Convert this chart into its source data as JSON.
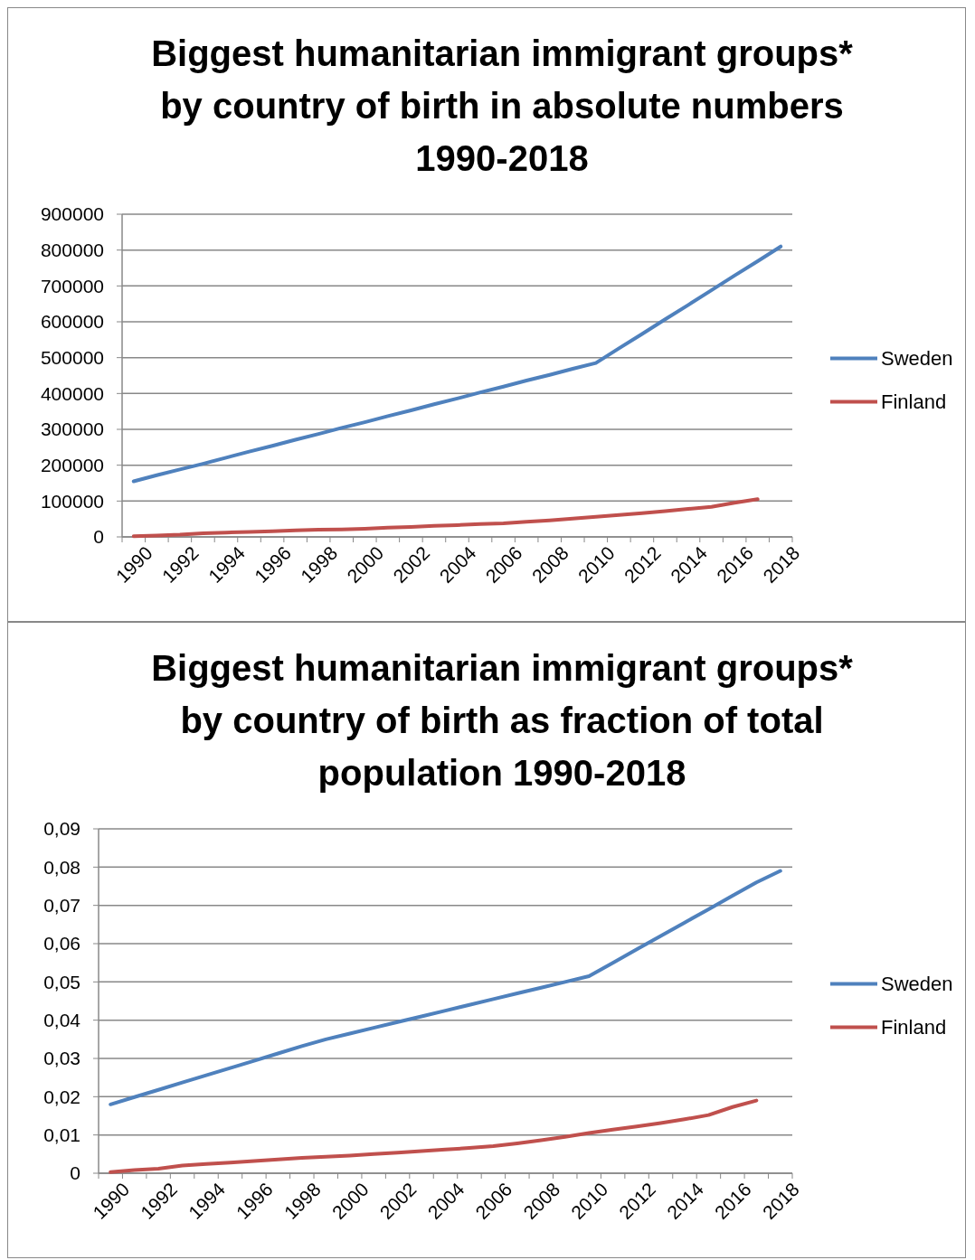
{
  "chart_data": [
    {
      "type": "line",
      "title": "Biggest humanitarian immigrant groups*\nby country of birth in absolute numbers\n1990-2018",
      "categories": [
        "1990",
        null,
        "1992",
        null,
        "1994",
        null,
        "1996",
        null,
        "1998",
        null,
        "2000",
        null,
        "2002",
        null,
        "2004",
        null,
        "2006",
        null,
        "2008",
        null,
        "2010",
        null,
        "2012",
        null,
        "2014",
        null,
        "2016",
        null,
        "2018"
      ],
      "ylim": [
        0,
        900000
      ],
      "yticks": [
        0,
        100000,
        200000,
        300000,
        400000,
        500000,
        600000,
        700000,
        800000,
        900000
      ],
      "grid": "y",
      "legend": "right",
      "series": [
        {
          "name": "Sweden",
          "color": "#4f81bd",
          "values": [
            155000,
            172000,
            188000,
            204000,
            221000,
            238000,
            254000,
            271000,
            287000,
            304000,
            320000,
            337000,
            353000,
            370000,
            386000,
            403000,
            419000,
            436000,
            452000,
            469000,
            485000,
            526000,
            566000,
            607000,
            647000,
            688000,
            729000,
            769000,
            810000
          ]
        },
        {
          "name": "Finland",
          "color": "#c0504d",
          "values": [
            2000,
            4000,
            6000,
            10000,
            12000,
            14000,
            16000,
            18000,
            20000,
            21000,
            23000,
            26000,
            28000,
            31000,
            33000,
            36000,
            38000,
            42000,
            46000,
            51000,
            56000,
            61000,
            66000,
            72000,
            78000,
            84000,
            95000,
            105000,
            null
          ]
        }
      ]
    },
    {
      "type": "line",
      "title": "Biggest humanitarian immigrant groups*\nby country of birth as fraction of total\npopulation 1990-2018",
      "categories": [
        "1990",
        null,
        "1992",
        null,
        "1994",
        null,
        "1996",
        null,
        "1998",
        null,
        "2000",
        null,
        "2002",
        null,
        "2004",
        null,
        "2006",
        null,
        "2008",
        null,
        "2010",
        null,
        "2012",
        null,
        "2014",
        null,
        "2016",
        null,
        "2018"
      ],
      "ylim": [
        0,
        0.09
      ],
      "yticks": [
        0,
        {
          "value": 0.01,
          "label": "0,01"
        },
        {
          "value": 0.02,
          "label": "0,02"
        },
        {
          "value": 0.03,
          "label": "0,03"
        },
        {
          "value": 0.04,
          "label": "0,04"
        },
        {
          "value": 0.05,
          "label": "0,05"
        },
        {
          "value": 0.06,
          "label": "0,06"
        },
        {
          "value": 0.07,
          "label": "0,07"
        },
        {
          "value": 0.08,
          "label": "0,08"
        },
        {
          "value": 0.09,
          "label": "0,09"
        }
      ],
      "grid": "y",
      "legend": "right",
      "series": [
        {
          "name": "Sweden",
          "color": "#4f81bd",
          "values": [
            0.018,
            0.0199,
            0.0218,
            0.0237,
            0.0256,
            0.0275,
            0.0294,
            0.0313,
            0.0332,
            0.035,
            0.0365,
            0.038,
            0.0395,
            0.041,
            0.0425,
            0.044,
            0.0455,
            0.047,
            0.0485,
            0.05,
            0.0515,
            0.055,
            0.0585,
            0.062,
            0.0655,
            0.069,
            0.0725,
            0.076,
            0.079
          ]
        },
        {
          "name": "Finland",
          "color": "#c0504d",
          "values": [
            0.0003,
            0.0008,
            0.0012,
            0.002,
            0.0024,
            0.0028,
            0.0032,
            0.0036,
            0.004,
            0.0043,
            0.0046,
            0.005,
            0.0054,
            0.0058,
            0.0062,
            0.0066,
            0.0071,
            0.0078,
            0.0086,
            0.0095,
            0.0105,
            0.0114,
            0.0122,
            0.0131,
            0.0141,
            0.0152,
            0.0173,
            0.019,
            null
          ]
        }
      ]
    }
  ]
}
